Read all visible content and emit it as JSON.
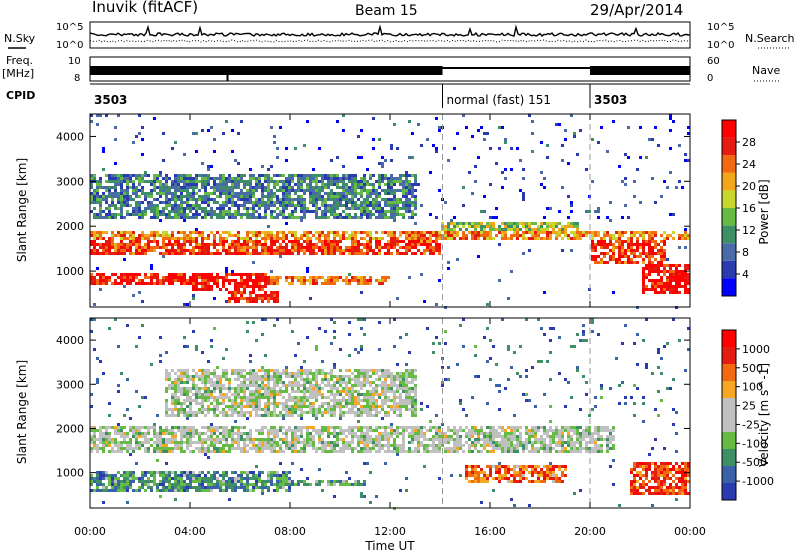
{
  "header": {
    "title": "Inuvik (fitACF)",
    "beam": "Beam 15",
    "date": "29/Apr/2014"
  },
  "labels": {
    "nsky": "N.Sky",
    "nsearch": "N.Search",
    "freq": "Freq.",
    "freq_unit": "[MHz]",
    "nave": "Nave",
    "cpid": "CPID"
  },
  "small_panels": {
    "noise": {
      "left_ticks": [
        "10^5",
        "10^0"
      ],
      "right_ticks": [
        "10^5",
        "10^0"
      ]
    },
    "freq": {
      "left_ticks": [
        "10",
        "8"
      ],
      "right_ticks": [
        "60",
        "0"
      ]
    }
  },
  "cpid_segments": [
    {
      "label": "3503",
      "start": 0,
      "end": 14.1
    },
    {
      "label": "normal (fast) 151",
      "start": 14.1,
      "end": 20.0
    },
    {
      "label": "3503",
      "start": 20.0,
      "end": 24
    }
  ],
  "colors": {
    "power": [
      "#0000ff",
      "#2a3bb0",
      "#4a6aa8",
      "#3f8f66",
      "#66bb44",
      "#c8d82a",
      "#f2a61a",
      "#f26a10",
      "#e51c10",
      "#ff0000"
    ],
    "velocity": [
      "#2a3bb0",
      "#3a62a8",
      "#3f8f66",
      "#66bb44",
      "#c0c0c0",
      "#c0c0c0",
      "#f5a623",
      "#f26a10",
      "#e51c10",
      "#ff0000"
    ]
  },
  "chart_data": [
    {
      "type": "heatmap",
      "name": "power",
      "xlabel": "",
      "ylabel": "Slant Range [km]",
      "xlim": [
        0,
        24
      ],
      "ylim": [
        200,
        4500
      ],
      "yticks": [
        1000,
        2000,
        3000,
        4000
      ],
      "colorbar": {
        "label": "Power [dB]",
        "ticks": [
          4,
          8,
          12,
          16,
          20,
          24,
          28
        ],
        "range": [
          0,
          32
        ]
      },
      "bands": [
        {
          "t0": 0,
          "t1": 24,
          "r_start": 1700,
          "r_end": 1950,
          "level": 0.7
        },
        {
          "t0": 0,
          "t1": 14,
          "r_start": 1400,
          "r_end": 1700,
          "level": 0.85
        },
        {
          "t0": 0,
          "t1": 4,
          "r_start": 700,
          "r_end": 1000,
          "level": 0.9
        },
        {
          "t0": 4,
          "t1": 7,
          "r_start": 600,
          "r_end": 1000,
          "level": 0.95
        },
        {
          "t0": 7,
          "t1": 12,
          "r_start": 750,
          "r_end": 950,
          "level": 0.75
        },
        {
          "t0": 14,
          "t1": 19.5,
          "r_start": 1800,
          "r_end": 2100,
          "level": 0.5
        },
        {
          "t0": 20,
          "t1": 23,
          "r_start": 1200,
          "r_end": 1800,
          "level": 0.85
        },
        {
          "t0": 22,
          "t1": 24,
          "r_start": 500,
          "r_end": 1200,
          "level": 0.95
        },
        {
          "t0": 0,
          "t1": 13,
          "r_start": 2200,
          "r_end": 3200,
          "level": 0.3
        },
        {
          "t0": 5.5,
          "t1": 7.5,
          "r_start": 300,
          "r_end": 600,
          "level": 0.9
        }
      ]
    },
    {
      "type": "heatmap",
      "name": "velocity",
      "xlabel": "Time UT",
      "ylabel": "Slant Range [km]",
      "xlim": [
        0,
        24
      ],
      "ylim": [
        200,
        4500
      ],
      "yticks": [
        1000,
        2000,
        3000,
        4000
      ],
      "xticks": [
        "00:00",
        "04:00",
        "08:00",
        "12:00",
        "16:00",
        "20:00",
        "00:00"
      ],
      "colorbar": {
        "label": "Velocity [m s^-1]",
        "ticks": [
          "1000",
          "500",
          "100",
          "25",
          "-25",
          "-100",
          "-500",
          "-1000"
        ]
      },
      "bands": [
        {
          "t0": 0,
          "t1": 21,
          "r_start": 1500,
          "r_end": 2100,
          "level": 0.45
        },
        {
          "t0": 0,
          "t1": 8,
          "r_start": 600,
          "r_end": 1100,
          "level": 0.25
        },
        {
          "t0": 8,
          "t1": 11,
          "r_start": 700,
          "r_end": 900,
          "level": 0.3
        },
        {
          "t0": 15,
          "t1": 19,
          "r_start": 800,
          "r_end": 1200,
          "level": 0.75
        },
        {
          "t0": 21.5,
          "t1": 24,
          "r_start": 500,
          "r_end": 1300,
          "level": 0.85
        },
        {
          "t0": 3,
          "t1": 13,
          "r_start": 2300,
          "r_end": 3400,
          "level": 0.45
        },
        {
          "t0": 5,
          "t1": 12,
          "r_start": 2300,
          "r_end": 2600,
          "level": 0.75
        }
      ]
    }
  ]
}
